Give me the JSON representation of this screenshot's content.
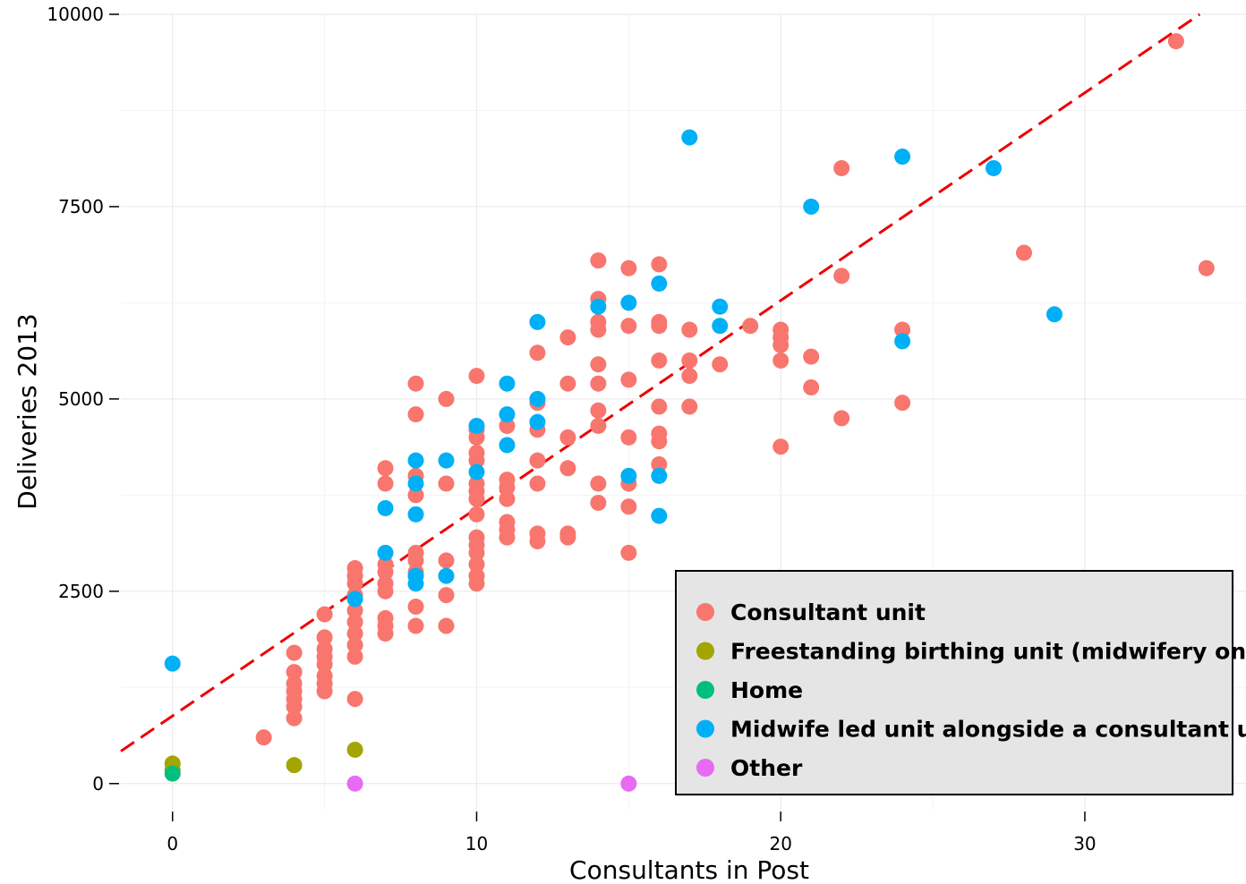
{
  "chart_data": {
    "type": "scatter",
    "title": "",
    "xlabel": "Consultants in Post",
    "ylabel": "Deliveries 2013",
    "xlim": [
      -1.7,
      35.3
    ],
    "ylim": [
      -340,
      10000
    ],
    "x_ticks": [
      0,
      10,
      20,
      30
    ],
    "x_tick_labels": [
      "0",
      "10",
      "20",
      "30"
    ],
    "y_ticks": [
      0,
      2500,
      5000,
      7500,
      10000
    ],
    "y_tick_labels": [
      "0",
      "2500",
      "5000",
      "7500",
      "10000"
    ],
    "grid": true,
    "legend_position": "bottom-right",
    "trendline": {
      "style": "dashed",
      "color": "#ee0000",
      "intercept": 880,
      "slope": 270
    },
    "series": [
      {
        "name": "Consultant unit",
        "color": "#F8766D",
        "points": [
          [
            3,
            600
          ],
          [
            4,
            850
          ],
          [
            4,
            1000
          ],
          [
            4,
            1100
          ],
          [
            4,
            1200
          ],
          [
            4,
            1300
          ],
          [
            4,
            1450
          ],
          [
            4,
            1700
          ],
          [
            5,
            1200
          ],
          [
            5,
            1300
          ],
          [
            5,
            1400
          ],
          [
            5,
            1550
          ],
          [
            5,
            1650
          ],
          [
            5,
            1750
          ],
          [
            5,
            1900
          ],
          [
            5,
            2200
          ],
          [
            6,
            1100
          ],
          [
            6,
            1650
          ],
          [
            6,
            1800
          ],
          [
            6,
            1950
          ],
          [
            6,
            2100
          ],
          [
            6,
            2250
          ],
          [
            6,
            2450
          ],
          [
            6,
            2600
          ],
          [
            6,
            2700
          ],
          [
            6,
            2800
          ],
          [
            7,
            1950
          ],
          [
            7,
            2050
          ],
          [
            7,
            2150
          ],
          [
            7,
            2500
          ],
          [
            7,
            2600
          ],
          [
            7,
            2750
          ],
          [
            7,
            2850
          ],
          [
            7,
            3900
          ],
          [
            7,
            4100
          ],
          [
            8,
            2050
          ],
          [
            8,
            2300
          ],
          [
            8,
            2750
          ],
          [
            8,
            2900
          ],
          [
            8,
            3000
          ],
          [
            8,
            3750
          ],
          [
            8,
            4000
          ],
          [
            8,
            4800
          ],
          [
            8,
            5200
          ],
          [
            9,
            2050
          ],
          [
            9,
            2450
          ],
          [
            9,
            2900
          ],
          [
            9,
            3900
          ],
          [
            9,
            5000
          ],
          [
            10,
            2600
          ],
          [
            10,
            2700
          ],
          [
            10,
            2850
          ],
          [
            10,
            3000
          ],
          [
            10,
            3100
          ],
          [
            10,
            3200
          ],
          [
            10,
            3500
          ],
          [
            10,
            3700
          ],
          [
            10,
            3800
          ],
          [
            10,
            3900
          ],
          [
            10,
            4200
          ],
          [
            10,
            4300
          ],
          [
            10,
            4500
          ],
          [
            10,
            4600
          ],
          [
            10,
            5300
          ],
          [
            11,
            3200
          ],
          [
            11,
            3300
          ],
          [
            11,
            3400
          ],
          [
            11,
            3700
          ],
          [
            11,
            3850
          ],
          [
            11,
            3950
          ],
          [
            11,
            4650
          ],
          [
            12,
            3150
          ],
          [
            12,
            3250
          ],
          [
            12,
            3900
          ],
          [
            12,
            4200
          ],
          [
            12,
            4600
          ],
          [
            12,
            4950
          ],
          [
            12,
            5600
          ],
          [
            13,
            3200
          ],
          [
            13,
            3250
          ],
          [
            13,
            4100
          ],
          [
            13,
            4500
          ],
          [
            13,
            5200
          ],
          [
            13,
            5800
          ],
          [
            14,
            3650
          ],
          [
            14,
            3900
          ],
          [
            14,
            4650
          ],
          [
            14,
            4850
          ],
          [
            14,
            5200
          ],
          [
            14,
            5450
          ],
          [
            14,
            5900
          ],
          [
            14,
            6000
          ],
          [
            14,
            6300
          ],
          [
            14,
            6800
          ],
          [
            15,
            3000
          ],
          [
            15,
            3600
          ],
          [
            15,
            3900
          ],
          [
            15,
            4500
          ],
          [
            15,
            5250
          ],
          [
            15,
            5950
          ],
          [
            15,
            6700
          ],
          [
            16,
            4150
          ],
          [
            16,
            4450
          ],
          [
            16,
            4550
          ],
          [
            16,
            4900
          ],
          [
            16,
            5500
          ],
          [
            16,
            5950
          ],
          [
            16,
            6000
          ],
          [
            16,
            6750
          ],
          [
            17,
            4900
          ],
          [
            17,
            5300
          ],
          [
            17,
            5500
          ],
          [
            17,
            5900
          ],
          [
            18,
            5450
          ],
          [
            19,
            5950
          ],
          [
            20,
            4380
          ],
          [
            20,
            5500
          ],
          [
            20,
            5700
          ],
          [
            20,
            5800
          ],
          [
            20,
            5900
          ],
          [
            21,
            5150
          ],
          [
            21,
            5550
          ],
          [
            22,
            4750
          ],
          [
            22,
            6600
          ],
          [
            22,
            8000
          ],
          [
            24,
            4950
          ],
          [
            24,
            5900
          ],
          [
            28,
            6900
          ],
          [
            33,
            9650
          ],
          [
            34,
            6700
          ]
        ]
      },
      {
        "name": "Freestanding birthing unit (midwifery only)",
        "color": "#A3A500",
        "points": [
          [
            0,
            180
          ],
          [
            0,
            260
          ],
          [
            4,
            240
          ],
          [
            6,
            440
          ]
        ]
      },
      {
        "name": "Home",
        "color": "#00BF7D",
        "points": [
          [
            0,
            130
          ]
        ]
      },
      {
        "name": "Midwife led unit alongside a consultant unit",
        "color": "#00B0F6",
        "points": [
          [
            0,
            1560
          ],
          [
            6,
            2400
          ],
          [
            7,
            3000
          ],
          [
            7,
            3580
          ],
          [
            8,
            2600
          ],
          [
            8,
            2700
          ],
          [
            8,
            3500
          ],
          [
            8,
            3900
          ],
          [
            8,
            4200
          ],
          [
            9,
            2700
          ],
          [
            9,
            4200
          ],
          [
            10,
            4050
          ],
          [
            10,
            4650
          ],
          [
            11,
            4400
          ],
          [
            11,
            4800
          ],
          [
            11,
            5200
          ],
          [
            12,
            4700
          ],
          [
            12,
            5000
          ],
          [
            12,
            6000
          ],
          [
            14,
            6200
          ],
          [
            15,
            4000
          ],
          [
            15,
            6250
          ],
          [
            16,
            3480
          ],
          [
            16,
            4000
          ],
          [
            16,
            6500
          ],
          [
            17,
            8400
          ],
          [
            18,
            5950
          ],
          [
            18,
            6200
          ],
          [
            21,
            7500
          ],
          [
            24,
            5750
          ],
          [
            24,
            8150
          ],
          [
            27,
            8000
          ],
          [
            29,
            6100
          ]
        ]
      },
      {
        "name": "Other",
        "color": "#E76BF3",
        "points": [
          [
            6,
            0
          ],
          [
            15,
            0
          ]
        ]
      }
    ]
  }
}
